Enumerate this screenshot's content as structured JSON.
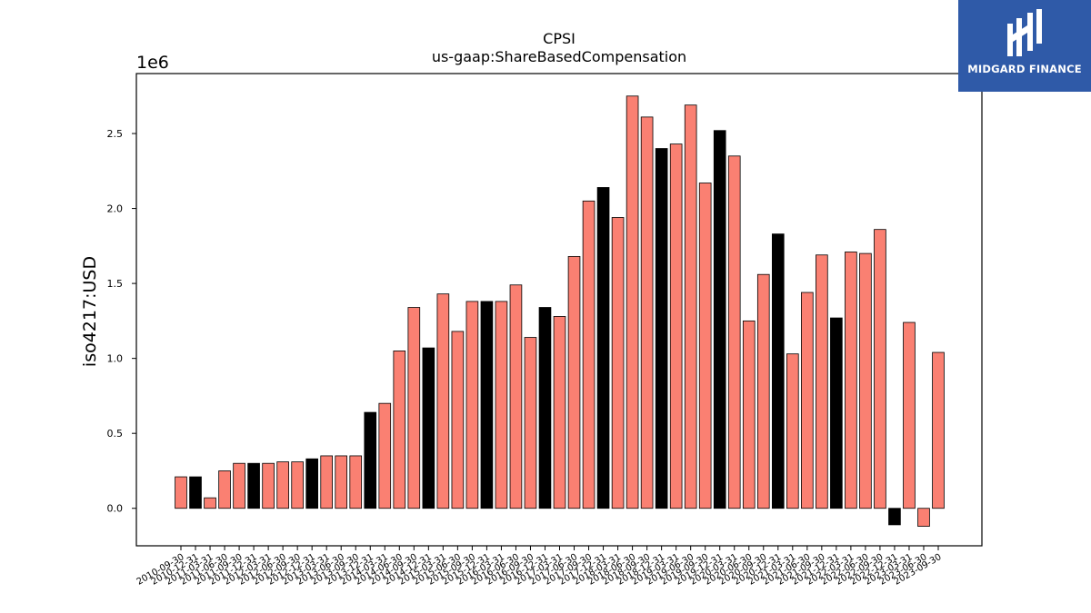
{
  "logo": {
    "text": "MIDGARD FINANCE",
    "background": "#2f5aa8",
    "icon": "midgard-logo-icon"
  },
  "chart_data": {
    "type": "bar",
    "title": "CPSI",
    "subtitle": "us-gaap:ShareBasedCompensation",
    "ylabel": "iso4217:USD",
    "xlabel": "",
    "offset_label": "1e6",
    "ylim": [
      -0.25,
      2.9
    ],
    "yscale_multiplier": 1000000,
    "yticks": [
      0.0,
      0.5,
      1.0,
      1.5,
      2.0,
      2.5
    ],
    "ytick_labels": [
      "0.0",
      "0.5",
      "1.0",
      "1.5",
      "2.0",
      "2.5"
    ],
    "grid": false,
    "colors": {
      "quarter": "#fa8072",
      "fiscal_year": "#000000"
    },
    "categories": [
      "2010-09-30",
      "2010-12-31",
      "2011-03-31",
      "2011-06-30",
      "2011-09-30",
      "2011-12-31",
      "2012-03-31",
      "2012-06-30",
      "2012-09-30",
      "2012-12-31",
      "2013-03-31",
      "2013-06-30",
      "2013-09-30",
      "2013-12-31",
      "2014-03-31",
      "2014-06-30",
      "2014-09-30",
      "2014-12-31",
      "2015-03-31",
      "2015-06-30",
      "2015-09-30",
      "2015-12-31",
      "2016-03-31",
      "2016-06-30",
      "2016-09-30",
      "2016-12-31",
      "2017-03-31",
      "2017-06-30",
      "2017-09-30",
      "2017-12-31",
      "2018-03-31",
      "2018-06-30",
      "2018-09-30",
      "2018-12-31",
      "2019-03-31",
      "2019-06-30",
      "2019-09-30",
      "2019-12-31",
      "2020-03-31",
      "2020-06-30",
      "2020-09-30",
      "2020-12-31",
      "2021-03-31",
      "2021-06-30",
      "2021-09-30",
      "2021-12-31",
      "2022-03-31",
      "2022-06-30",
      "2022-09-30",
      "2022-12-31",
      "2023-03-31",
      "2023-06-30",
      "2023-09-30"
    ],
    "values": [
      0.21,
      0.21,
      0.07,
      0.25,
      0.3,
      0.3,
      0.3,
      0.31,
      0.31,
      0.33,
      0.35,
      0.35,
      0.35,
      0.64,
      0.7,
      1.05,
      1.34,
      1.07,
      1.43,
      1.18,
      1.38,
      1.38,
      1.38,
      1.49,
      1.14,
      1.34,
      1.28,
      1.68,
      2.05,
      2.14,
      1.94,
      2.75,
      2.61,
      2.4,
      2.43,
      2.69,
      2.17,
      2.52,
      2.35,
      1.25,
      1.56,
      1.83,
      1.03,
      1.44,
      1.69,
      1.27,
      1.71,
      1.7,
      1.86,
      -0.11,
      1.24,
      -0.12,
      1.04
    ],
    "bar_types": [
      "q",
      "fy",
      "q",
      "q",
      "q",
      "fy",
      "q",
      "q",
      "q",
      "fy",
      "q",
      "q",
      "q",
      "fy",
      "q",
      "q",
      "q",
      "fy",
      "q",
      "q",
      "q",
      "fy",
      "q",
      "q",
      "q",
      "fy",
      "q",
      "q",
      "q",
      "fy",
      "q",
      "q",
      "q",
      "fy",
      "q",
      "q",
      "q",
      "fy",
      "q",
      "q",
      "q",
      "fy",
      "q",
      "q",
      "q",
      "fy",
      "q",
      "q",
      "q",
      "fy",
      "q",
      "q",
      "q"
    ]
  }
}
